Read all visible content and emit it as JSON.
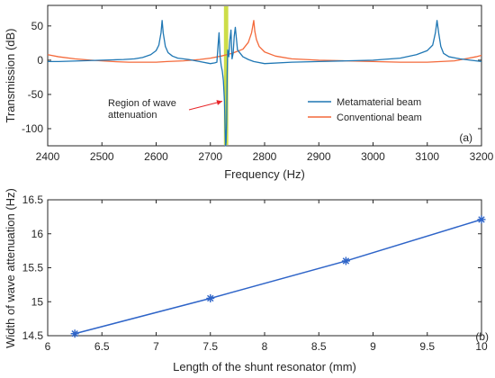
{
  "chart_data": [
    {
      "type": "line",
      "panel_label": "(a)",
      "xlabel": "Frequency (Hz)",
      "ylabel": "Transmission (dB)",
      "xlim": [
        2400,
        3200
      ],
      "ylim": [
        -125,
        80
      ],
      "xticks": [
        2400,
        2500,
        2600,
        2700,
        2800,
        2900,
        3000,
        3100,
        3200
      ],
      "yticks": [
        -100,
        -50,
        0,
        50
      ],
      "grid": false,
      "legend_position": "lower-right",
      "highlight_band": {
        "x": [
          2725,
          2733
        ],
        "color": "#c8d934"
      },
      "annotation": {
        "text_lines": [
          "Region of wave",
          "attenuation"
        ],
        "target": [
          2727,
          -60
        ],
        "color": "#e8262a"
      },
      "series": [
        {
          "name": "Metamaterial beam",
          "color": "#1f77b4",
          "x": [
            2400,
            2420,
            2440,
            2460,
            2480,
            2500,
            2520,
            2540,
            2560,
            2575,
            2590,
            2600,
            2605,
            2609,
            2611,
            2613,
            2617,
            2622,
            2630,
            2640,
            2660,
            2680,
            2700,
            2708,
            2712,
            2714,
            2716,
            2718,
            2720,
            2722,
            2724,
            2726,
            2728,
            2729,
            2730,
            2731,
            2732,
            2734,
            2736,
            2738,
            2740,
            2742,
            2744,
            2746,
            2750,
            2760,
            2770,
            2780,
            2800,
            2850,
            2900,
            2950,
            3000,
            3050,
            3080,
            3100,
            3110,
            3115,
            3118,
            3121,
            3125,
            3130,
            3140,
            3160,
            3180,
            3200
          ],
          "y": [
            -2,
            -2,
            -1.5,
            -1,
            -0.5,
            0,
            0.5,
            1,
            2,
            4,
            8,
            14,
            22,
            40,
            58,
            40,
            20,
            11,
            6,
            3,
            1,
            -2,
            -5,
            -4,
            -3,
            20,
            40,
            5,
            -8,
            -16,
            -30,
            -60,
            -125,
            -120,
            -90,
            -20,
            15,
            5,
            30,
            44,
            2,
            10,
            35,
            48,
            15,
            5,
            1,
            -2,
            -5,
            -3,
            -2,
            -1,
            0,
            3,
            8,
            14,
            22,
            40,
            58,
            40,
            20,
            10,
            5,
            2,
            0,
            -2
          ]
        },
        {
          "name": "Conventional beam",
          "color": "#f4693a",
          "x": [
            2400,
            2420,
            2450,
            2480,
            2500,
            2520,
            2550,
            2580,
            2600,
            2620,
            2650,
            2680,
            2700,
            2720,
            2740,
            2760,
            2770,
            2776,
            2780,
            2782,
            2785,
            2790,
            2800,
            2820,
            2850,
            2900,
            2950,
            3000,
            3050,
            3100,
            3150,
            3170,
            3190,
            3200
          ],
          "y": [
            8,
            5,
            2,
            0,
            -1,
            -2,
            -3,
            -3,
            -3,
            -2,
            -1,
            1,
            3,
            6,
            10,
            16,
            26,
            40,
            58,
            42,
            30,
            20,
            12,
            6,
            2,
            0,
            -1,
            -2,
            -3,
            -3,
            -1,
            2,
            5,
            7
          ]
        }
      ]
    },
    {
      "type": "line",
      "panel_label": "(b)",
      "xlabel": "Length of the shunt resonator (mm)",
      "ylabel": "Width of wave attenuation (Hz)",
      "xlim": [
        6,
        10
      ],
      "ylim": [
        14.5,
        16.5
      ],
      "xticks": [
        6,
        6.5,
        7,
        7.5,
        8,
        8.5,
        9,
        9.5,
        10
      ],
      "yticks": [
        14.5,
        15,
        15.5,
        16,
        16.5
      ],
      "grid": false,
      "marker": "asterisk",
      "series": [
        {
          "color": "#2e64c8",
          "x": [
            6.25,
            7.5,
            8.75,
            10
          ],
          "y": [
            14.53,
            15.05,
            15.6,
            16.21
          ]
        }
      ]
    }
  ]
}
